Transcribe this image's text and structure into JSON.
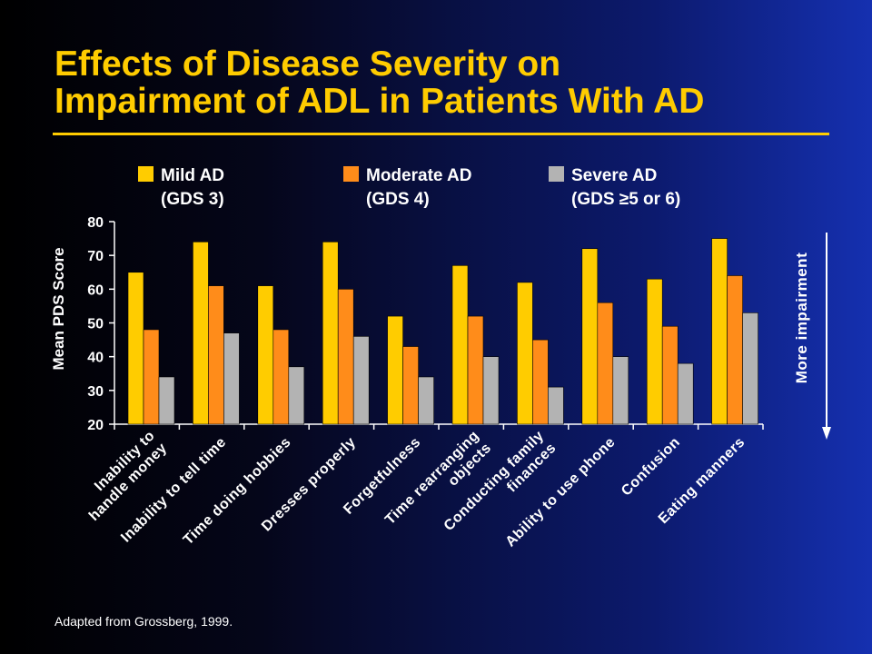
{
  "title_line1": "Effects of Disease Severity on",
  "title_line2": "Impairment of ADL in Patients With AD",
  "footnote": "Adapted from Grossberg, 1999.",
  "side_label": "More impairment",
  "legend": [
    {
      "line1": "Mild AD",
      "line2": "(GDS 3)",
      "color": "#ffcc00"
    },
    {
      "line1": "Moderate AD",
      "line2": "(GDS 4)",
      "color": "#ff8c1a"
    },
    {
      "line1": "Severe AD",
      "line2": "(GDS ≥5 or 6)",
      "color": "#b3b3b3"
    }
  ],
  "chart_data": {
    "type": "bar",
    "ylabel": "Mean PDS Score",
    "ylim": [
      20,
      80
    ],
    "yticks": [
      20,
      30,
      40,
      50,
      60,
      70,
      80
    ],
    "categories": [
      [
        "Inability to",
        "handle money"
      ],
      [
        "Inability to tell time"
      ],
      [
        "Time doing hobbies"
      ],
      [
        "Dresses properly"
      ],
      [
        "Forgetfulness"
      ],
      [
        "Time rearranging",
        "objects"
      ],
      [
        "Conducting family",
        "finances"
      ],
      [
        "Ability to use phone"
      ],
      [
        "Confusion"
      ],
      [
        "Eating manners"
      ]
    ],
    "series": [
      {
        "name": "Mild AD (GDS 3)",
        "color": "#ffcc00",
        "values": [
          65,
          74,
          61,
          74,
          52,
          67,
          62,
          72,
          63,
          75
        ]
      },
      {
        "name": "Moderate AD (GDS 4)",
        "color": "#ff8c1a",
        "values": [
          48,
          61,
          48,
          60,
          43,
          52,
          45,
          56,
          49,
          64
        ]
      },
      {
        "name": "Severe AD (GDS ≥5 or 6)",
        "color": "#b3b3b3",
        "values": [
          34,
          47,
          37,
          46,
          34,
          40,
          31,
          40,
          38,
          53
        ]
      }
    ]
  }
}
